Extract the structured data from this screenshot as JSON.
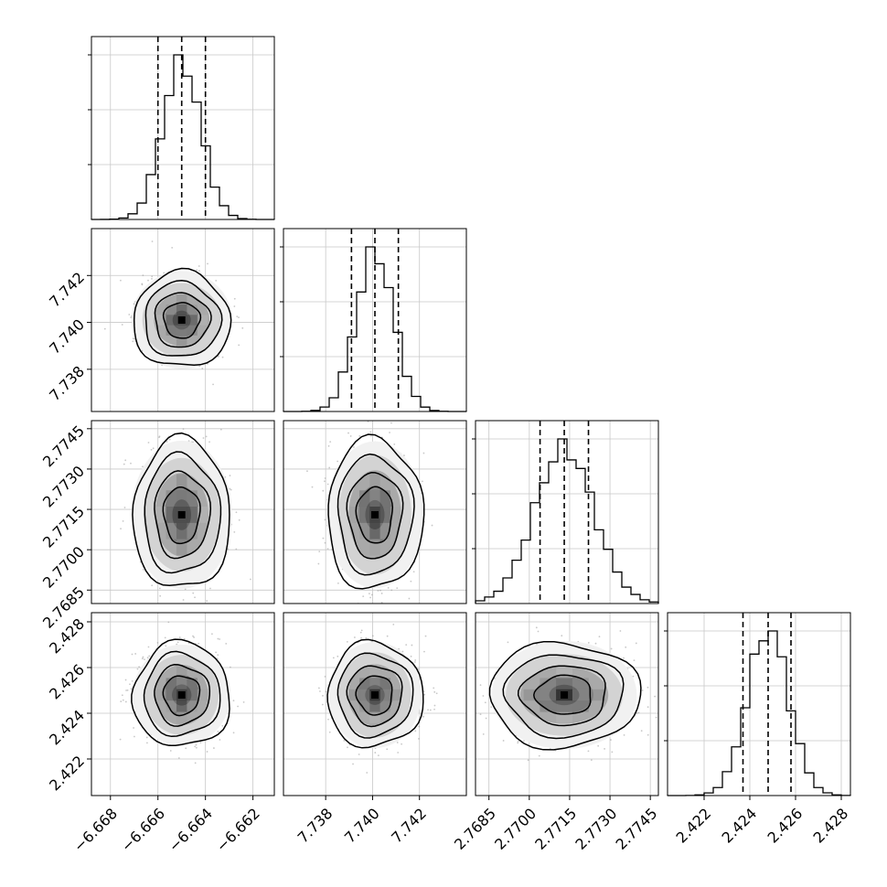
{
  "chart_data": {
    "type": "corner",
    "grid": true,
    "parameters": [
      {
        "mean": -6.665,
        "sigma": 0.0008,
        "lo": -6.666,
        "hi": -6.664,
        "range": [
          -6.6688,
          -6.6611
        ],
        "ticks": [
          -6.668,
          -6.666,
          -6.664,
          -6.662
        ],
        "tick_labels": [
          "−6.668",
          "−6.666",
          "−6.664",
          "−6.662"
        ]
      },
      {
        "mean": 7.7401,
        "sigma": 0.0008,
        "lo": 7.7391,
        "hi": 7.7411,
        "range": [
          7.7362,
          7.744
        ],
        "ticks": [
          7.738,
          7.74,
          7.742
        ],
        "tick_labels": [
          "7.738",
          "7.740",
          "7.742"
        ]
      },
      {
        "mean": 2.7713,
        "sigma": 0.0011,
        "lo": 2.7704,
        "hi": 2.7722,
        "range": [
          2.768,
          2.7748
        ],
        "ticks": [
          2.7685,
          2.77,
          2.7715,
          2.773,
          2.7745
        ],
        "tick_labels": [
          "2.7685",
          "2.7700",
          "2.7715",
          "2.7730",
          "2.7745"
        ]
      },
      {
        "mean": 2.4248,
        "sigma": 0.0009,
        "lo": 2.4237,
        "hi": 2.4258,
        "range": [
          2.4204,
          2.4284
        ],
        "ticks": [
          2.422,
          2.424,
          2.426,
          2.428
        ],
        "tick_labels": [
          "2.422",
          "2.424",
          "2.426",
          "2.428"
        ]
      }
    ]
  }
}
